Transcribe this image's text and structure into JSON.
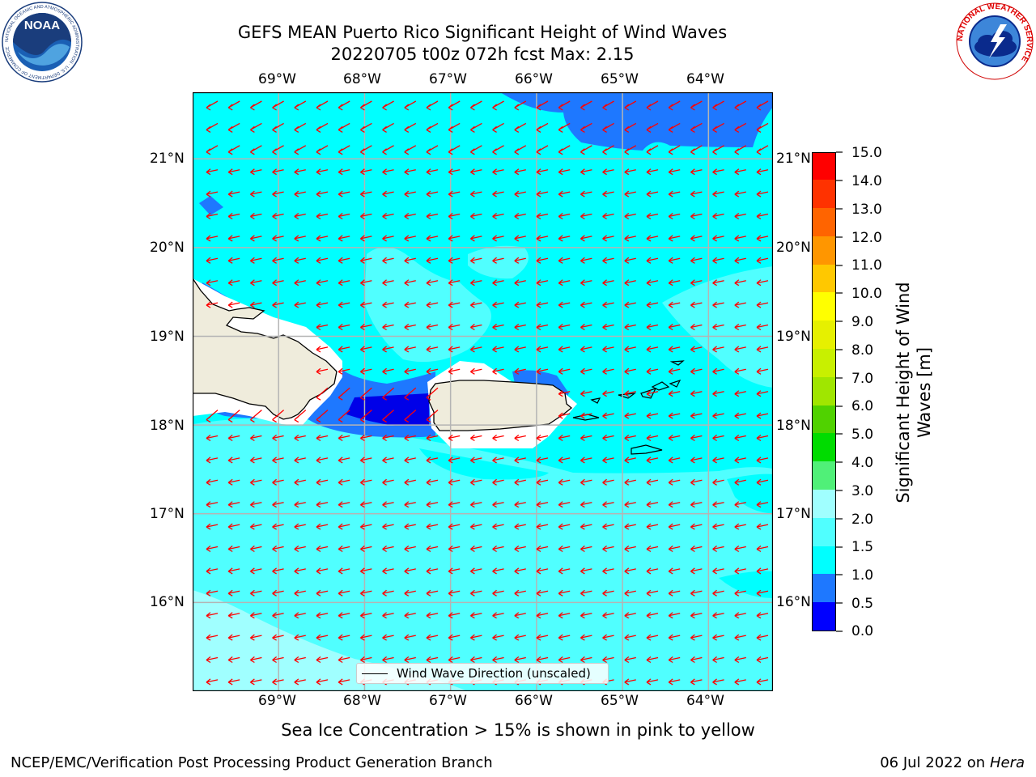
{
  "header": {
    "title_line1": "GEFS MEAN Puerto Rico Significant Height of Wind Waves",
    "title_line2": "20220705 t00z 072h fcst   Max: 2.15"
  },
  "logos": {
    "noaa_text": "NOAA",
    "noaa_ring": "NATIONAL OCEANIC AND ATMOSPHERIC ADMINISTRATION · U.S. DEPARTMENT OF COMMERCE",
    "nws_ring": "NATIONAL WEATHER SERVICE"
  },
  "map": {
    "lon_labels": [
      "69°W",
      "68°W",
      "67°W",
      "66°W",
      "65°W",
      "64°W"
    ],
    "lat_labels": [
      "21°N",
      "20°N",
      "19°N",
      "18°N",
      "17°N",
      "16°N"
    ],
    "lon_values": [
      -69,
      -68,
      -67,
      -66,
      -65,
      -64
    ],
    "lat_values": [
      21,
      20,
      19,
      18,
      17,
      16
    ],
    "extent": {
      "lon": [
        -70,
        -63.25
      ],
      "lat": [
        15,
        21.75
      ]
    },
    "legend_label": "Wind Wave Direction (unscaled)",
    "wave_direction": "westward"
  },
  "colorbar": {
    "label_line1": "Significant Height of Wind",
    "label_line2": "Waves [m]",
    "ticks": [
      "0.0",
      "0.5",
      "1.0",
      "1.5",
      "2.0",
      "3.0",
      "4.0",
      "5.0",
      "6.0",
      "7.0",
      "8.0",
      "9.0",
      "10.0",
      "11.0",
      "12.0",
      "13.0",
      "14.0",
      "15.0"
    ],
    "colors": [
      "#0000ff",
      "#1e78ff",
      "#00ffff",
      "#50ffff",
      "#a0ffff",
      "#50f078",
      "#00dc00",
      "#50d200",
      "#a0e600",
      "#c8f000",
      "#e6f000",
      "#ffff00",
      "#ffc800",
      "#ff9600",
      "#ff6400",
      "#ff3200",
      "#ff0000"
    ]
  },
  "footer": {
    "ice_note": "Sea Ice Concentration > 15% is shown in pink to yellow",
    "producer": "NCEP/EMC/Verification Post Processing Product Generation Branch",
    "date_prefix": "06 Jul 2022 on",
    "date_host": "Hera"
  }
}
